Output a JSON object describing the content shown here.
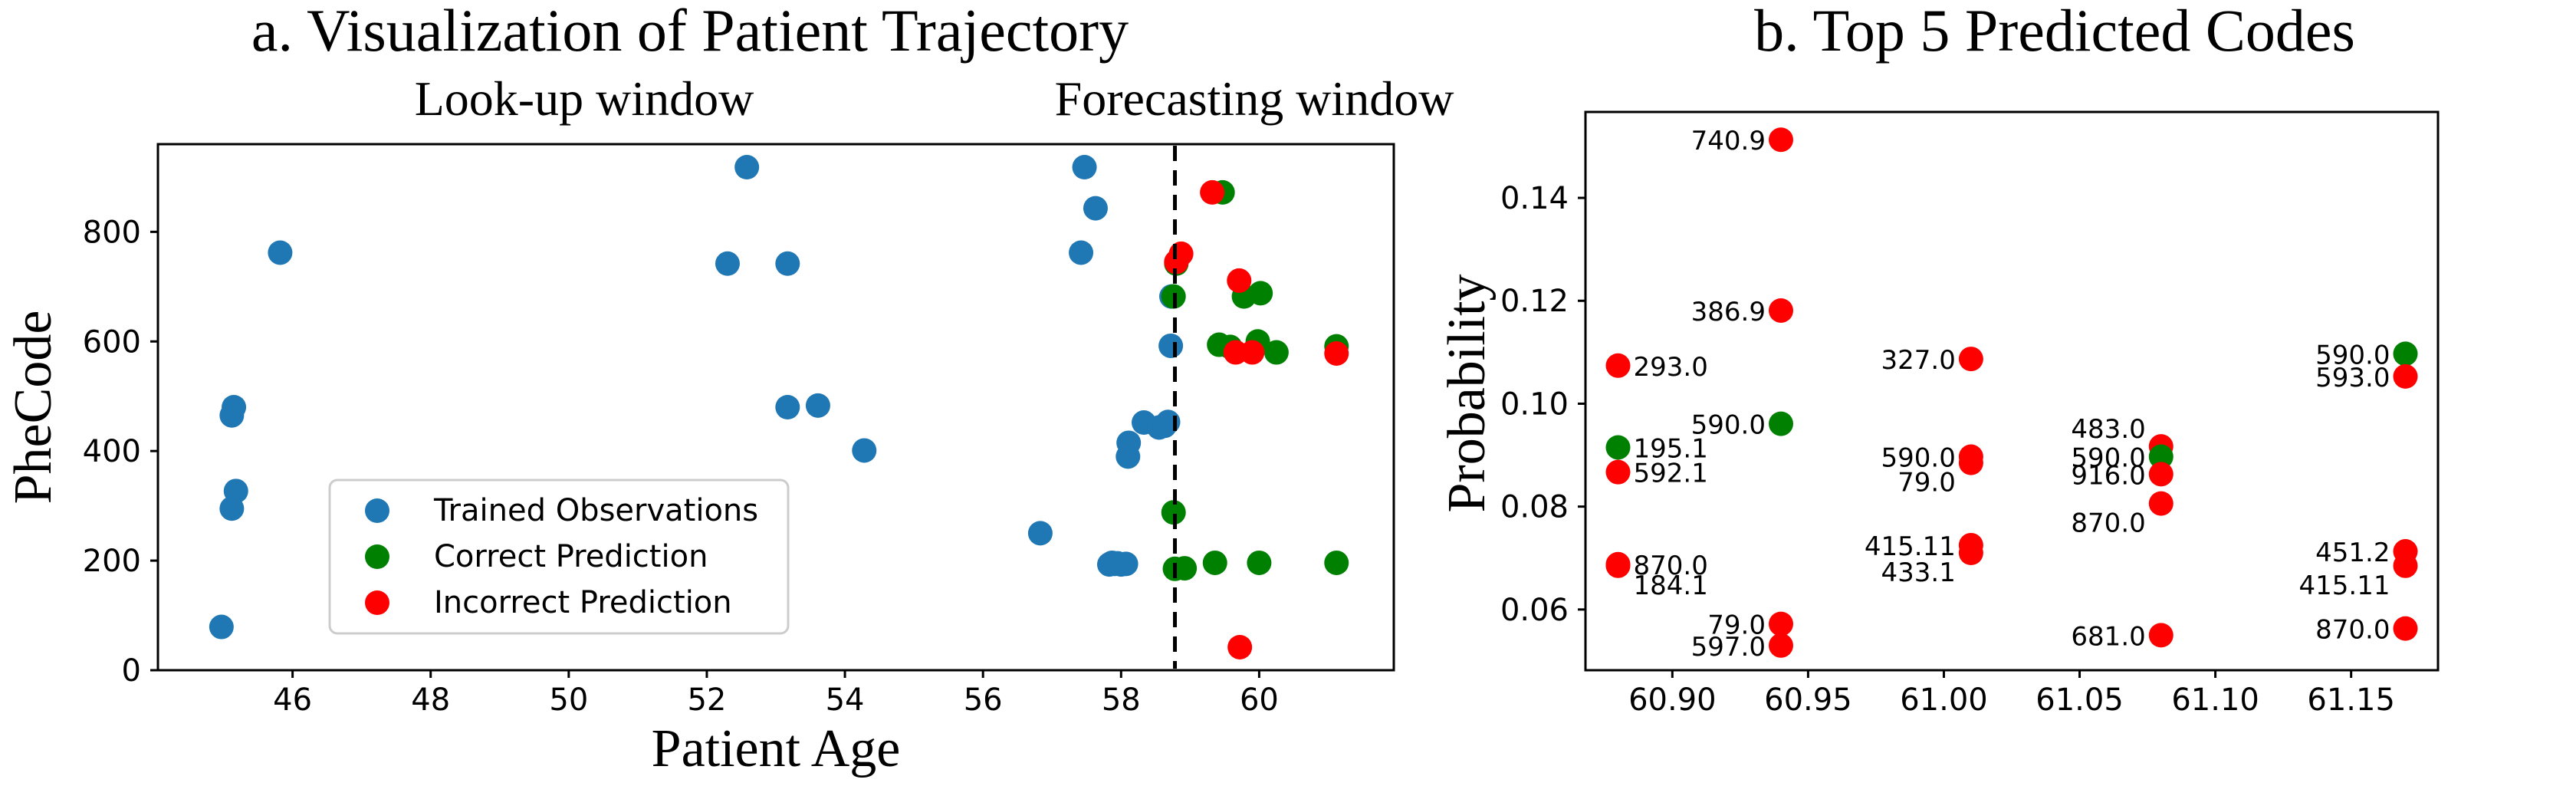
{
  "chart_data": [
    {
      "type": "scatter",
      "title": "a. Visualization of Patient Trajectory",
      "xlabel": "Patient Age",
      "ylabel": "PheCode",
      "xlim": [
        44.05,
        61.95
      ],
      "ylim": [
        0,
        960
      ],
      "xticks": [
        "46",
        "48",
        "50",
        "52",
        "54",
        "56",
        "58",
        "60"
      ],
      "yticks": [
        "0",
        "200",
        "400",
        "600",
        "800"
      ],
      "annotations": {
        "left_window": "Look-up window",
        "right_window": "Forecasting window",
        "divider_age": 58.78
      },
      "legend_position": "lower-center",
      "series": [
        {
          "name": "Trained Observations",
          "color": "#1f77b4",
          "points": [
            [
              44.97,
              79
            ],
            [
              45.12,
              465
            ],
            [
              45.15,
              480
            ],
            [
              45.18,
              327
            ],
            [
              45.12,
              295
            ],
            [
              45.82,
              762
            ],
            [
              52.3,
              742
            ],
            [
              52.58,
              918
            ],
            [
              53.17,
              742
            ],
            [
              53.17,
              480
            ],
            [
              53.61,
              483
            ],
            [
              54.28,
              401
            ],
            [
              56.83,
              250
            ],
            [
              57.42,
              762
            ],
            [
              57.47,
              918
            ],
            [
              57.63,
              843
            ],
            [
              57.83,
              193
            ],
            [
              57.87,
              196
            ],
            [
              57.91,
              194
            ],
            [
              57.95,
              195
            ],
            [
              58.0,
              193
            ],
            [
              58.07,
              194
            ],
            [
              58.1,
              390
            ],
            [
              58.11,
              415
            ],
            [
              58.33,
              452
            ],
            [
              58.55,
              443
            ],
            [
              58.63,
              446
            ],
            [
              58.68,
              453
            ],
            [
              58.72,
              592
            ],
            [
              58.73,
              682
            ]
          ]
        },
        {
          "name": "Correct Prediction",
          "color": "#008000",
          "points": [
            [
              58.76,
              288
            ],
            [
              58.76,
              682
            ],
            [
              58.8,
              742
            ],
            [
              58.78,
              185
            ],
            [
              58.92,
              186
            ],
            [
              59.36,
              196
            ],
            [
              59.47,
              872
            ],
            [
              59.42,
              594
            ],
            [
              59.58,
              590
            ],
            [
              59.78,
              682
            ],
            [
              59.98,
              600
            ],
            [
              60.02,
              688
            ],
            [
              60.0,
              196
            ],
            [
              60.25,
              580
            ],
            [
              61.12,
              591
            ],
            [
              61.12,
              196
            ]
          ]
        },
        {
          "name": "Incorrect Prediction",
          "color": "#ff0000",
          "points": [
            [
              58.8,
              745
            ],
            [
              58.87,
              760
            ],
            [
              59.32,
              872
            ],
            [
              59.71,
              711
            ],
            [
              59.66,
              580
            ],
            [
              59.9,
              580
            ],
            [
              59.72,
              42
            ],
            [
              61.12,
              578
            ]
          ]
        }
      ]
    },
    {
      "type": "scatter",
      "title": "b. Top 5 Predicted Codes",
      "xlabel": "",
      "ylabel": "Probability",
      "xlim": [
        60.868,
        61.182
      ],
      "ylim": [
        0.0482,
        0.1567
      ],
      "xticks": [
        "60.90",
        "60.95",
        "61.00",
        "61.05",
        "61.10",
        "61.15"
      ],
      "yticks": [
        "0.06",
        "0.08",
        "0.10",
        "0.12",
        "0.14"
      ],
      "points": [
        {
          "x": 60.88,
          "y": 0.1074,
          "label": "293.0",
          "color": "#ff0000",
          "side": "right"
        },
        {
          "x": 60.88,
          "y": 0.0915,
          "label": "195.1",
          "color": "#008000",
          "side": "right"
        },
        {
          "x": 60.88,
          "y": 0.0867,
          "label": "592.1",
          "color": "#ff0000",
          "side": "right"
        },
        {
          "x": 60.88,
          "y": 0.0688,
          "label": "870.0",
          "color": "#ff0000",
          "side": "right"
        },
        {
          "x": 60.88,
          "y": 0.0685,
          "label": "184.1",
          "color": "#ff0000",
          "side": "right-below"
        },
        {
          "x": 60.94,
          "y": 0.1513,
          "label": "740.9",
          "color": "#ff0000",
          "side": "left"
        },
        {
          "x": 60.94,
          "y": 0.1181,
          "label": "386.9",
          "color": "#ff0000",
          "side": "left"
        },
        {
          "x": 60.94,
          "y": 0.0961,
          "label": "590.0",
          "color": "#008000",
          "side": "left"
        },
        {
          "x": 60.94,
          "y": 0.0572,
          "label": "79.0",
          "color": "#ff0000",
          "side": "left"
        },
        {
          "x": 60.94,
          "y": 0.053,
          "label": "597.0",
          "color": "#ff0000",
          "side": "left"
        },
        {
          "x": 61.01,
          "y": 0.1087,
          "label": "327.0",
          "color": "#ff0000",
          "side": "left"
        },
        {
          "x": 61.01,
          "y": 0.0897,
          "label": "590.0",
          "color": "#ff0000",
          "side": "left"
        },
        {
          "x": 61.01,
          "y": 0.0885,
          "label": "79.0",
          "color": "#ff0000",
          "side": "left-below"
        },
        {
          "x": 61.01,
          "y": 0.0725,
          "label": "415.11",
          "color": "#ff0000",
          "side": "left"
        },
        {
          "x": 61.01,
          "y": 0.071,
          "label": "433.1",
          "color": "#ff0000",
          "side": "left-below"
        },
        {
          "x": 61.08,
          "y": 0.0917,
          "label": "483.0",
          "color": "#ff0000",
          "side": "left-above"
        },
        {
          "x": 61.08,
          "y": 0.0897,
          "label": "590.0",
          "color": "#008000",
          "side": "left"
        },
        {
          "x": 61.08,
          "y": 0.0863,
          "label": "916.0",
          "color": "#ff0000",
          "side": "left"
        },
        {
          "x": 61.08,
          "y": 0.0806,
          "label": "870.0",
          "color": "#ff0000",
          "side": "left-below"
        },
        {
          "x": 61.08,
          "y": 0.055,
          "label": "681.0",
          "color": "#ff0000",
          "side": "left"
        },
        {
          "x": 61.17,
          "y": 0.1097,
          "label": "590.0",
          "color": "#008000",
          "side": "left"
        },
        {
          "x": 61.17,
          "y": 0.1053,
          "label": "593.0",
          "color": "#ff0000",
          "side": "left"
        },
        {
          "x": 61.17,
          "y": 0.0713,
          "label": "451.2",
          "color": "#ff0000",
          "side": "left"
        },
        {
          "x": 61.17,
          "y": 0.0685,
          "label": "415.11",
          "color": "#ff0000",
          "side": "left-below"
        },
        {
          "x": 61.17,
          "y": 0.0563,
          "label": "870.0",
          "color": "#ff0000",
          "side": "left"
        }
      ]
    }
  ]
}
